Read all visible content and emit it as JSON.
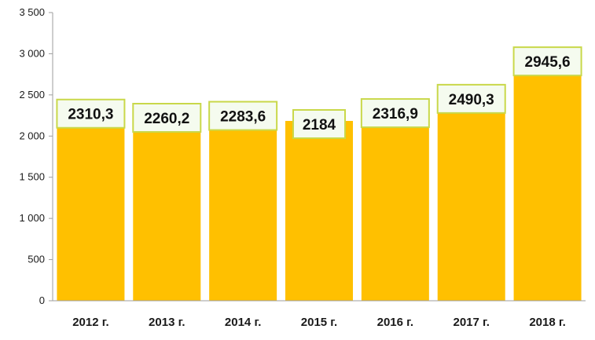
{
  "chart_data": {
    "type": "bar",
    "title": "",
    "xlabel": "",
    "ylabel": "",
    "categories": [
      "2012 г.",
      "2013 г.",
      "2014 г.",
      "2015 г.",
      "2016 г.",
      "2017 г.",
      "2018 г."
    ],
    "values": [
      2310.3,
      2260.2,
      2283.6,
      2184,
      2316.9,
      2490.3,
      2945.6
    ],
    "value_labels": [
      "2310,3",
      "2260,2",
      "2283,6",
      "2184",
      "2316,9",
      "2490,3",
      "2945,6"
    ],
    "ylim": [
      0,
      3500
    ],
    "yticks": [
      0,
      500,
      1000,
      1500,
      2000,
      2500,
      3000,
      3500
    ],
    "ytick_labels": [
      "0",
      "500",
      "1 000",
      "1 500",
      "2 000",
      "2 500",
      "3 000",
      "3 500"
    ],
    "grid": false,
    "legend": "none",
    "colors": {
      "bar": "#FFC000",
      "label_bg": "#F5FBEF",
      "label_border": "#C9D84A",
      "axis": "#9e9e9e"
    }
  }
}
